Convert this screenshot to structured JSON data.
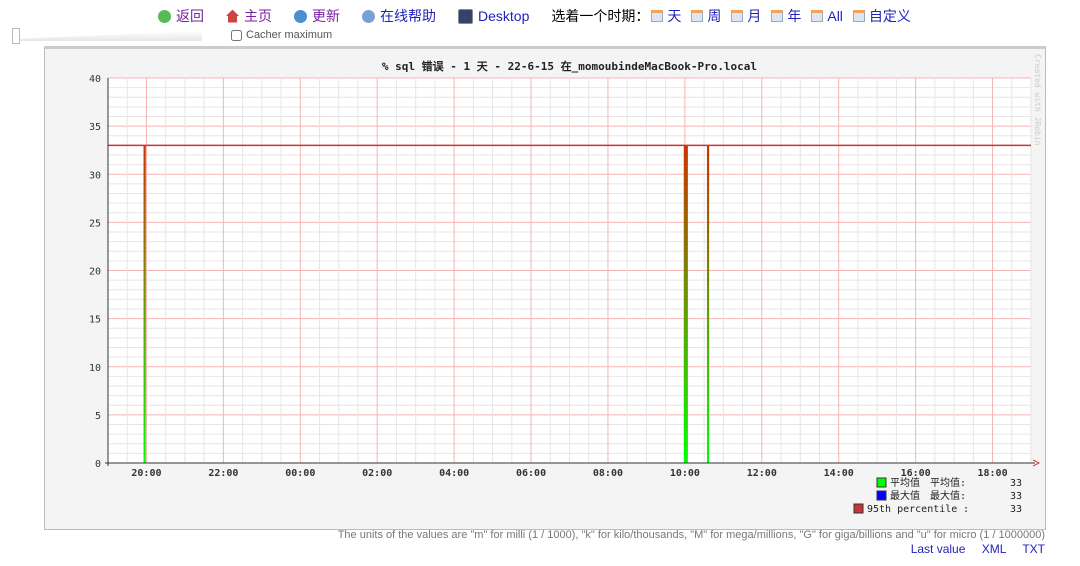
{
  "nav": {
    "back": "返回",
    "home": "主页",
    "refresh": "更新",
    "help": "在线帮助",
    "desktop": "Desktop",
    "period_label": "选着一个时期：",
    "periods": [
      "天",
      "周",
      "月",
      "年",
      "All",
      "自定义"
    ]
  },
  "cacher": "Cacher maximum",
  "chart_data": {
    "type": "area",
    "title": "% sql 错误 - 1 天 - 22-6-15 在_momoubindeMacBook-Pro.local",
    "watermark": "Created with JRobin",
    "ylim": [
      0,
      40
    ],
    "yticks": [
      0,
      5,
      10,
      15,
      20,
      25,
      30,
      35,
      40
    ],
    "xticks": [
      "20:00",
      "22:00",
      "00:00",
      "02:00",
      "04:00",
      "06:00",
      "08:00",
      "10:00",
      "12:00",
      "14:00",
      "16:00",
      "18:00"
    ],
    "xrange": [
      "19:00",
      "19:00"
    ],
    "series": [
      {
        "name": "平均值",
        "color": "#00ff00",
        "points": [
          {
            "x": "19:57",
            "y": 33
          },
          {
            "x": "10:00",
            "y": 33
          },
          {
            "x": "10:02",
            "y": 33
          },
          {
            "x": "10:36",
            "y": 33
          }
        ]
      },
      {
        "name": "最大值",
        "color": "#0000ff"
      },
      {
        "name": "95th percentile",
        "color": "#cc3333",
        "value": 33
      }
    ],
    "legend": [
      {
        "name": "平均值",
        "label": "平均值:",
        "value": "33",
        "color": "#00ff00"
      },
      {
        "name": "最大值",
        "label": "最大值:",
        "value": "33",
        "color": "#0000ff"
      },
      {
        "name": "95th percentile",
        "label": ":",
        "value": "33",
        "color": "#cc3333"
      }
    ],
    "grid": true,
    "legend_position": "bottom-right"
  },
  "units_note": "The units of the values are \"m\" for milli (1 / 1000), \"k\" for kilo/thousands, \"M\" for mega/millions, \"G\" for giga/billions and \"u\" for micro (1 / 1000000)",
  "links": {
    "last": "Last value",
    "xml": "XML",
    "txt": "TXT"
  }
}
